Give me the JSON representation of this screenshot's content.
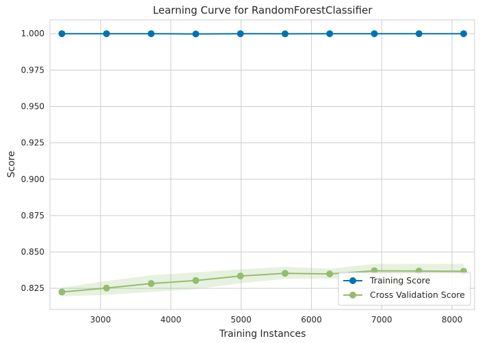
{
  "chart_data": {
    "type": "line",
    "title": "Learning Curve for RandomForestClassifier",
    "xlabel": "Training Instances",
    "ylabel": "Score",
    "xlim": [
      2280,
      8320
    ],
    "ylim": [
      0.8105,
      1.0095
    ],
    "xticks": [
      3000,
      4000,
      5000,
      6000,
      7000,
      8000
    ],
    "yticks": [
      0.825,
      0.85,
      0.875,
      0.9,
      0.925,
      0.95,
      0.975,
      1.0
    ],
    "xtick_labels": [
      "3000",
      "4000",
      "5000",
      "6000",
      "7000",
      "8000"
    ],
    "ytick_labels": [
      "0.825",
      "0.850",
      "0.875",
      "0.900",
      "0.925",
      "0.950",
      "0.975",
      "1.000"
    ],
    "grid": true,
    "legend_position": "bottom-right",
    "x": [
      2450,
      3085,
      3720,
      4355,
      4990,
      5625,
      6260,
      6895,
      7530,
      8165
    ],
    "series": [
      {
        "name": "Training Score",
        "color": "#0072b2",
        "values": [
          1.0,
          1.0,
          1.0,
          0.9998,
          1.0,
          0.9999,
          1.0,
          1.0,
          1.0,
          1.0
        ],
        "band_lower": [
          1.0,
          1.0,
          1.0,
          0.9996,
          1.0,
          0.9998,
          1.0,
          1.0,
          1.0,
          1.0
        ],
        "band_upper": [
          1.0,
          1.0,
          1.0,
          1.0,
          1.0,
          1.0,
          1.0,
          1.0,
          1.0,
          1.0
        ]
      },
      {
        "name": "Cross Validation Score",
        "color": "#93bd6e",
        "values": [
          0.8225,
          0.8252,
          0.8283,
          0.8304,
          0.8335,
          0.8353,
          0.8349,
          0.8371,
          0.8369,
          0.8367
        ],
        "band_lower": [
          0.8195,
          0.8205,
          0.8225,
          0.8245,
          0.8285,
          0.8315,
          0.8315,
          0.832,
          0.8315,
          0.8315
        ],
        "band_upper": [
          0.8255,
          0.83,
          0.834,
          0.836,
          0.838,
          0.8398,
          0.8385,
          0.8418,
          0.8418,
          0.8418
        ]
      }
    ]
  }
}
